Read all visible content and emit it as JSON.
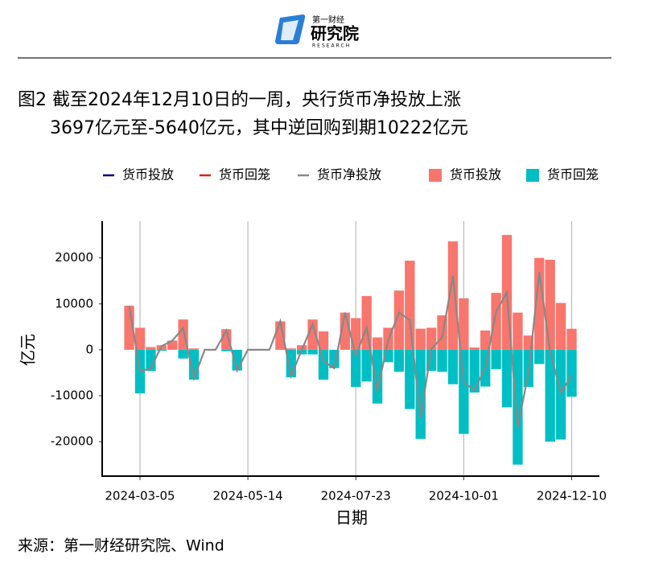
{
  "header": {
    "logo_top": "第一财经",
    "logo_main": "研究院",
    "logo_sub": "RESEARCH"
  },
  "source": "来源：第一财经研究院、Wind",
  "chart_data": {
    "type": "bar",
    "title": [
      "图2 截至2024年12月10日的一周，央行货币净投放上涨",
      "3697亿元至-5640亿元，其中逆回购到期10222亿元"
    ],
    "xlabel": "日期",
    "ylabel": "亿元",
    "x": [
      "2024-02-27",
      "2024-03-05",
      "2024-03-12",
      "2024-03-19",
      "2024-03-26",
      "2024-04-02",
      "2024-04-09",
      "2024-04-16",
      "2024-04-23",
      "2024-04-30",
      "2024-05-07",
      "2024-05-14",
      "2024-05-21",
      "2024-05-28",
      "2024-06-04",
      "2024-06-11",
      "2024-06-18",
      "2024-06-25",
      "2024-07-02",
      "2024-07-09",
      "2024-07-16",
      "2024-07-23",
      "2024-07-30",
      "2024-08-06",
      "2024-08-13",
      "2024-08-20",
      "2024-08-27",
      "2024-09-03",
      "2024-09-10",
      "2024-09-17",
      "2024-09-24",
      "2024-10-01",
      "2024-10-08",
      "2024-10-15",
      "2024-10-22",
      "2024-10-29",
      "2024-11-05",
      "2024-11-12",
      "2024-11-19",
      "2024-11-26",
      "2024-12-03",
      "2024-12-10"
    ],
    "xlim": [
      "2024-02-10",
      "2024-12-28"
    ],
    "xticks": [
      "2024-03-05",
      "2024-05-14",
      "2024-07-23",
      "2024-10-01",
      "2024-12-10"
    ],
    "ylim": [
      -27500,
      28000
    ],
    "yticks": [
      -20000,
      -10000,
      0,
      10000,
      20000
    ],
    "grid": "x",
    "series": [
      {
        "name": "货币投放",
        "kind": "bar",
        "color": "#f8766d",
        "values": [
          9600,
          4800,
          600,
          1000,
          2000,
          6600,
          300,
          0,
          0,
          4500,
          0,
          0,
          0,
          0,
          6200,
          300,
          1000,
          6600,
          4000,
          0,
          8100,
          6900,
          11700,
          2700,
          4800,
          12900,
          19400,
          4600,
          4800,
          7500,
          23600,
          11200,
          500,
          4200,
          12400,
          25000,
          8100,
          3100,
          20000,
          19600,
          10200,
          4582
        ]
      },
      {
        "name": "货币回笼",
        "kind": "bar",
        "color": "#00bfc4",
        "values": [
          0,
          -9500,
          -4600,
          -200,
          0,
          -1900,
          -6500,
          0,
          0,
          -300,
          -4500,
          0,
          0,
          0,
          0,
          -6000,
          -1000,
          -1000,
          -6500,
          -4000,
          0,
          -8100,
          -6900,
          -11700,
          -2700,
          -4800,
          -12900,
          -19400,
          -4600,
          -4800,
          -7500,
          -18300,
          -9300,
          -8000,
          -4200,
          -12500,
          -25000,
          -8100,
          -3100,
          -20000,
          -19537,
          -10222
        ]
      },
      {
        "name": "货币净投放",
        "kind": "line",
        "color": "#888888",
        "values": [
          9600,
          -4700,
          -4000,
          800,
          2000,
          4700,
          -6200,
          0,
          0,
          4200,
          -4500,
          0,
          0,
          0,
          6200,
          -5700,
          0,
          5600,
          -2500,
          -4000,
          8100,
          -1200,
          4800,
          -9000,
          2100,
          8100,
          6500,
          -14800,
          200,
          2700,
          16100,
          -7100,
          -8800,
          -3800,
          8200,
          12500,
          -16900,
          -5000,
          16900,
          -400,
          -9337,
          -5640
        ]
      }
    ],
    "legend": [
      {
        "name": "货币投放",
        "kind": "line",
        "color": "#000080"
      },
      {
        "name": "货币回笼",
        "kind": "line",
        "color": "#e41a1c"
      },
      {
        "name": "货币净投放",
        "kind": "line",
        "color": "#888888"
      },
      {
        "name": "货币投放",
        "kind": "bar",
        "color": "#f8766d"
      },
      {
        "name": "货币回笼",
        "kind": "bar",
        "color": "#00bfc4"
      }
    ]
  }
}
